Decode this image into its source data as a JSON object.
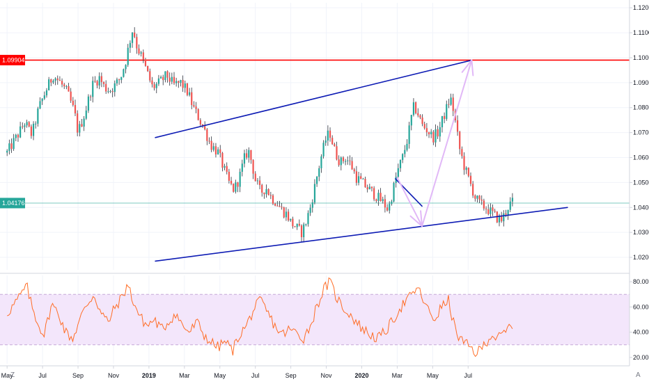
{
  "chart_data": [
    {
      "type": "candlestick",
      "title": "",
      "xlabel": "",
      "ylabel": "",
      "ylim": [
        1.015,
        1.122
      ],
      "y_ticks": [
        "1.12000",
        "1.11000",
        "1.10000",
        "1.09000",
        "1.08000",
        "1.07000",
        "1.06000",
        "1.05000",
        "1.04000",
        "1.03000",
        "1.02000"
      ],
      "price_labels": {
        "resistance": "1.09904",
        "last": "1.04176"
      },
      "horizontal_lines": [
        {
          "name": "resistance",
          "value": 1.09904,
          "color": "#ff0000"
        },
        {
          "name": "last-price",
          "value": 1.04176,
          "color": "#26a69a"
        }
      ],
      "trendlines": [
        {
          "name": "channel-upper",
          "color": "#0d1bb4",
          "points": [
            [
              4.18,
              1.068
            ],
            [
              13.1,
              1.099
            ]
          ]
        },
        {
          "name": "channel-lower",
          "color": "#0d1bb4",
          "points": [
            [
              4.18,
              1.0185
            ],
            [
              15.8,
              1.04
            ]
          ]
        },
        {
          "name": "short-downtrend",
          "color": "#0d1bb4",
          "points": [
            [
              10.95,
              1.0515
            ],
            [
              11.7,
              1.0405
            ]
          ]
        },
        {
          "name": "projection-down",
          "color": "#e1b8f7",
          "points": [
            [
              11.0,
              1.052
            ],
            [
              11.7,
              1.0325
            ]
          ]
        },
        {
          "name": "projection-up",
          "color": "#e1b8f7",
          "points": [
            [
              11.7,
              1.0325
            ],
            [
              13.1,
              1.099
            ]
          ]
        }
      ],
      "price_path": [
        [
          0.0,
          1.062
        ],
        [
          0.3,
          1.069
        ],
        [
          0.5,
          1.074
        ],
        [
          0.7,
          1.069
        ],
        [
          0.9,
          1.08
        ],
        [
          1.1,
          1.087
        ],
        [
          1.3,
          1.093
        ],
        [
          1.5,
          1.09
        ],
        [
          1.7,
          1.086
        ],
        [
          1.9,
          1.078
        ],
        [
          2.0,
          1.07
        ],
        [
          2.2,
          1.078
        ],
        [
          2.4,
          1.089
        ],
        [
          2.6,
          1.092
        ],
        [
          2.75,
          1.088
        ],
        [
          2.9,
          1.087
        ],
        [
          3.05,
          1.089
        ],
        [
          3.2,
          1.092
        ],
        [
          3.35,
          1.099
        ],
        [
          3.45,
          1.106
        ],
        [
          3.55,
          1.112
        ],
        [
          3.65,
          1.105
        ],
        [
          3.8,
          1.1
        ],
        [
          3.95,
          1.094
        ],
        [
          4.1,
          1.088
        ],
        [
          4.3,
          1.09
        ],
        [
          4.5,
          1.093
        ],
        [
          4.7,
          1.089
        ],
        [
          4.9,
          1.09
        ],
        [
          5.1,
          1.086
        ],
        [
          5.25,
          1.08
        ],
        [
          5.4,
          1.076
        ],
        [
          5.6,
          1.07
        ],
        [
          5.75,
          1.065
        ],
        [
          5.95,
          1.062
        ],
        [
          6.1,
          1.056
        ],
        [
          6.25,
          1.05
        ],
        [
          6.4,
          1.047
        ],
        [
          6.55,
          1.052
        ],
        [
          6.7,
          1.06
        ],
        [
          6.8,
          1.063
        ],
        [
          6.9,
          1.058
        ],
        [
          7.0,
          1.051
        ],
        [
          7.15,
          1.046
        ],
        [
          7.3,
          1.048
        ],
        [
          7.45,
          1.044
        ],
        [
          7.6,
          1.042
        ],
        [
          7.75,
          1.039
        ],
        [
          7.9,
          1.037
        ],
        [
          8.0,
          1.034
        ],
        [
          8.15,
          1.032
        ],
        [
          8.3,
          1.03
        ],
        [
          8.4,
          1.033
        ],
        [
          8.55,
          1.04
        ],
        [
          8.7,
          1.05
        ],
        [
          8.85,
          1.06
        ],
        [
          9.0,
          1.068
        ],
        [
          9.1,
          1.07
        ],
        [
          9.25,
          1.062
        ],
        [
          9.4,
          1.058
        ],
        [
          9.55,
          1.06
        ],
        [
          9.7,
          1.057
        ],
        [
          9.85,
          1.052
        ],
        [
          10.0,
          1.05
        ],
        [
          10.15,
          1.048
        ],
        [
          10.3,
          1.046
        ],
        [
          10.45,
          1.044
        ],
        [
          10.6,
          1.042
        ],
        [
          10.75,
          1.039
        ],
        [
          10.85,
          1.045
        ],
        [
          11.0,
          1.054
        ],
        [
          11.15,
          1.06
        ],
        [
          11.3,
          1.068
        ],
        [
          11.45,
          1.08
        ],
        [
          11.55,
          1.079
        ],
        [
          11.7,
          1.073
        ],
        [
          11.85,
          1.071
        ],
        [
          12.0,
          1.068
        ],
        [
          12.15,
          1.07
        ],
        [
          12.3,
          1.076
        ],
        [
          12.4,
          1.08
        ],
        [
          12.5,
          1.084
        ],
        [
          12.6,
          1.078
        ],
        [
          12.75,
          1.064
        ],
        [
          12.9,
          1.056
        ],
        [
          13.05,
          1.05
        ],
        [
          13.2,
          1.044
        ],
        [
          13.35,
          1.041
        ],
        [
          13.5,
          1.04
        ],
        [
          13.65,
          1.038
        ],
        [
          13.8,
          1.036
        ],
        [
          13.95,
          1.035
        ],
        [
          14.05,
          1.038
        ],
        [
          14.15,
          1.041
        ],
        [
          14.25,
          1.042
        ]
      ]
    },
    {
      "type": "line",
      "title": "",
      "xlabel": "",
      "ylabel": "",
      "ylim": [
        15,
        85
      ],
      "y_ticks": [
        "80.00",
        "60.00",
        "40.00",
        "20.00"
      ],
      "band": [
        30,
        70
      ],
      "series_color": "#ff6d26",
      "rsi_path": [
        [
          0.0,
          55
        ],
        [
          0.2,
          62
        ],
        [
          0.4,
          70
        ],
        [
          0.55,
          77
        ],
        [
          0.7,
          60
        ],
        [
          0.9,
          45
        ],
        [
          1.05,
          38
        ],
        [
          1.25,
          62
        ],
        [
          1.45,
          55
        ],
        [
          1.65,
          40
        ],
        [
          1.85,
          35
        ],
        [
          2.05,
          50
        ],
        [
          2.25,
          62
        ],
        [
          2.45,
          70
        ],
        [
          2.65,
          55
        ],
        [
          2.85,
          48
        ],
        [
          3.05,
          60
        ],
        [
          3.25,
          68
        ],
        [
          3.4,
          78
        ],
        [
          3.55,
          65
        ],
        [
          3.75,
          52
        ],
        [
          3.95,
          45
        ],
        [
          4.15,
          50
        ],
        [
          4.35,
          42
        ],
        [
          4.55,
          48
        ],
        [
          4.75,
          55
        ],
        [
          4.95,
          45
        ],
        [
          5.15,
          40
        ],
        [
          5.35,
          48
        ],
        [
          5.55,
          38
        ],
        [
          5.75,
          32
        ],
        [
          5.95,
          28
        ],
        [
          6.15,
          33
        ],
        [
          6.35,
          25
        ],
        [
          6.55,
          38
        ],
        [
          6.75,
          45
        ],
        [
          6.95,
          58
        ],
        [
          7.15,
          65
        ],
        [
          7.35,
          55
        ],
        [
          7.55,
          45
        ],
        [
          7.75,
          38
        ],
        [
          7.95,
          42
        ],
        [
          8.15,
          40
        ],
        [
          8.35,
          35
        ],
        [
          8.55,
          45
        ],
        [
          8.75,
          62
        ],
        [
          8.95,
          75
        ],
        [
          9.1,
          80
        ],
        [
          9.25,
          70
        ],
        [
          9.45,
          60
        ],
        [
          9.65,
          55
        ],
        [
          9.85,
          48
        ],
        [
          10.05,
          42
        ],
        [
          10.25,
          38
        ],
        [
          10.45,
          35
        ],
        [
          10.65,
          40
        ],
        [
          10.85,
          48
        ],
        [
          11.05,
          58
        ],
        [
          11.25,
          65
        ],
        [
          11.45,
          70
        ],
        [
          11.55,
          76
        ],
        [
          11.7,
          68
        ],
        [
          11.85,
          58
        ],
        [
          12.05,
          50
        ],
        [
          12.25,
          60
        ],
        [
          12.45,
          65
        ],
        [
          12.65,
          40
        ],
        [
          12.85,
          32
        ],
        [
          13.05,
          28
        ],
        [
          13.25,
          23
        ],
        [
          13.45,
          30
        ],
        [
          13.65,
          38
        ],
        [
          13.85,
          35
        ],
        [
          14.05,
          40
        ],
        [
          14.25,
          47
        ]
      ]
    }
  ],
  "x_axis": {
    "labels": [
      "May",
      "Jul",
      "Sep",
      "Nov",
      "2019",
      "Mar",
      "May",
      "Jul",
      "Sep",
      "Nov",
      "2020",
      "Mar",
      "May",
      "Jul"
    ],
    "x_range": [
      -0.2,
      17.55
    ]
  },
  "toolbar": {
    "zoom_label": "Z",
    "auto_label": "A"
  },
  "colors": {
    "up": "#26a69a",
    "down": "#ef5350",
    "wick": "#2a2e39",
    "grid": "#f0f3fa",
    "axis_text": "#131722",
    "border": "#d1d4dc",
    "rsi_band": "#f3e6fb",
    "rsi_band_line": "#c6a9d8"
  }
}
